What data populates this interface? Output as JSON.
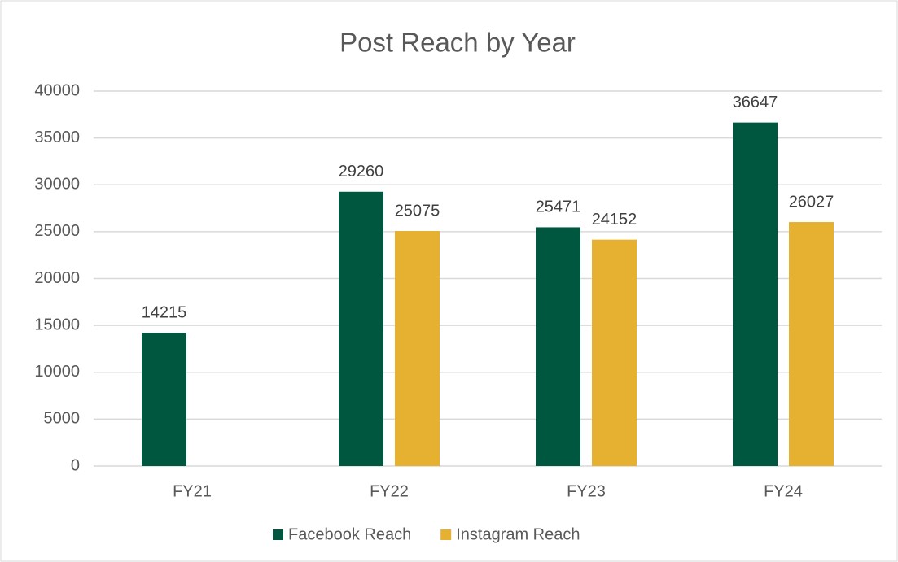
{
  "chart_data": {
    "type": "bar",
    "title": "Post Reach by Year",
    "categories": [
      "FY21",
      "FY22",
      "FY23",
      "FY24"
    ],
    "series": [
      {
        "name": "Facebook Reach",
        "color": "#00573f",
        "values": [
          14215,
          29260,
          25471,
          36647
        ]
      },
      {
        "name": "Instagram Reach",
        "color": "#e6b030",
        "values": [
          null,
          25075,
          24152,
          26027
        ]
      }
    ],
    "ylim": [
      0,
      40000
    ],
    "yticks": [
      0,
      5000,
      10000,
      15000,
      20000,
      25000,
      30000,
      35000,
      40000
    ],
    "grid": true,
    "legend": "bottom"
  }
}
